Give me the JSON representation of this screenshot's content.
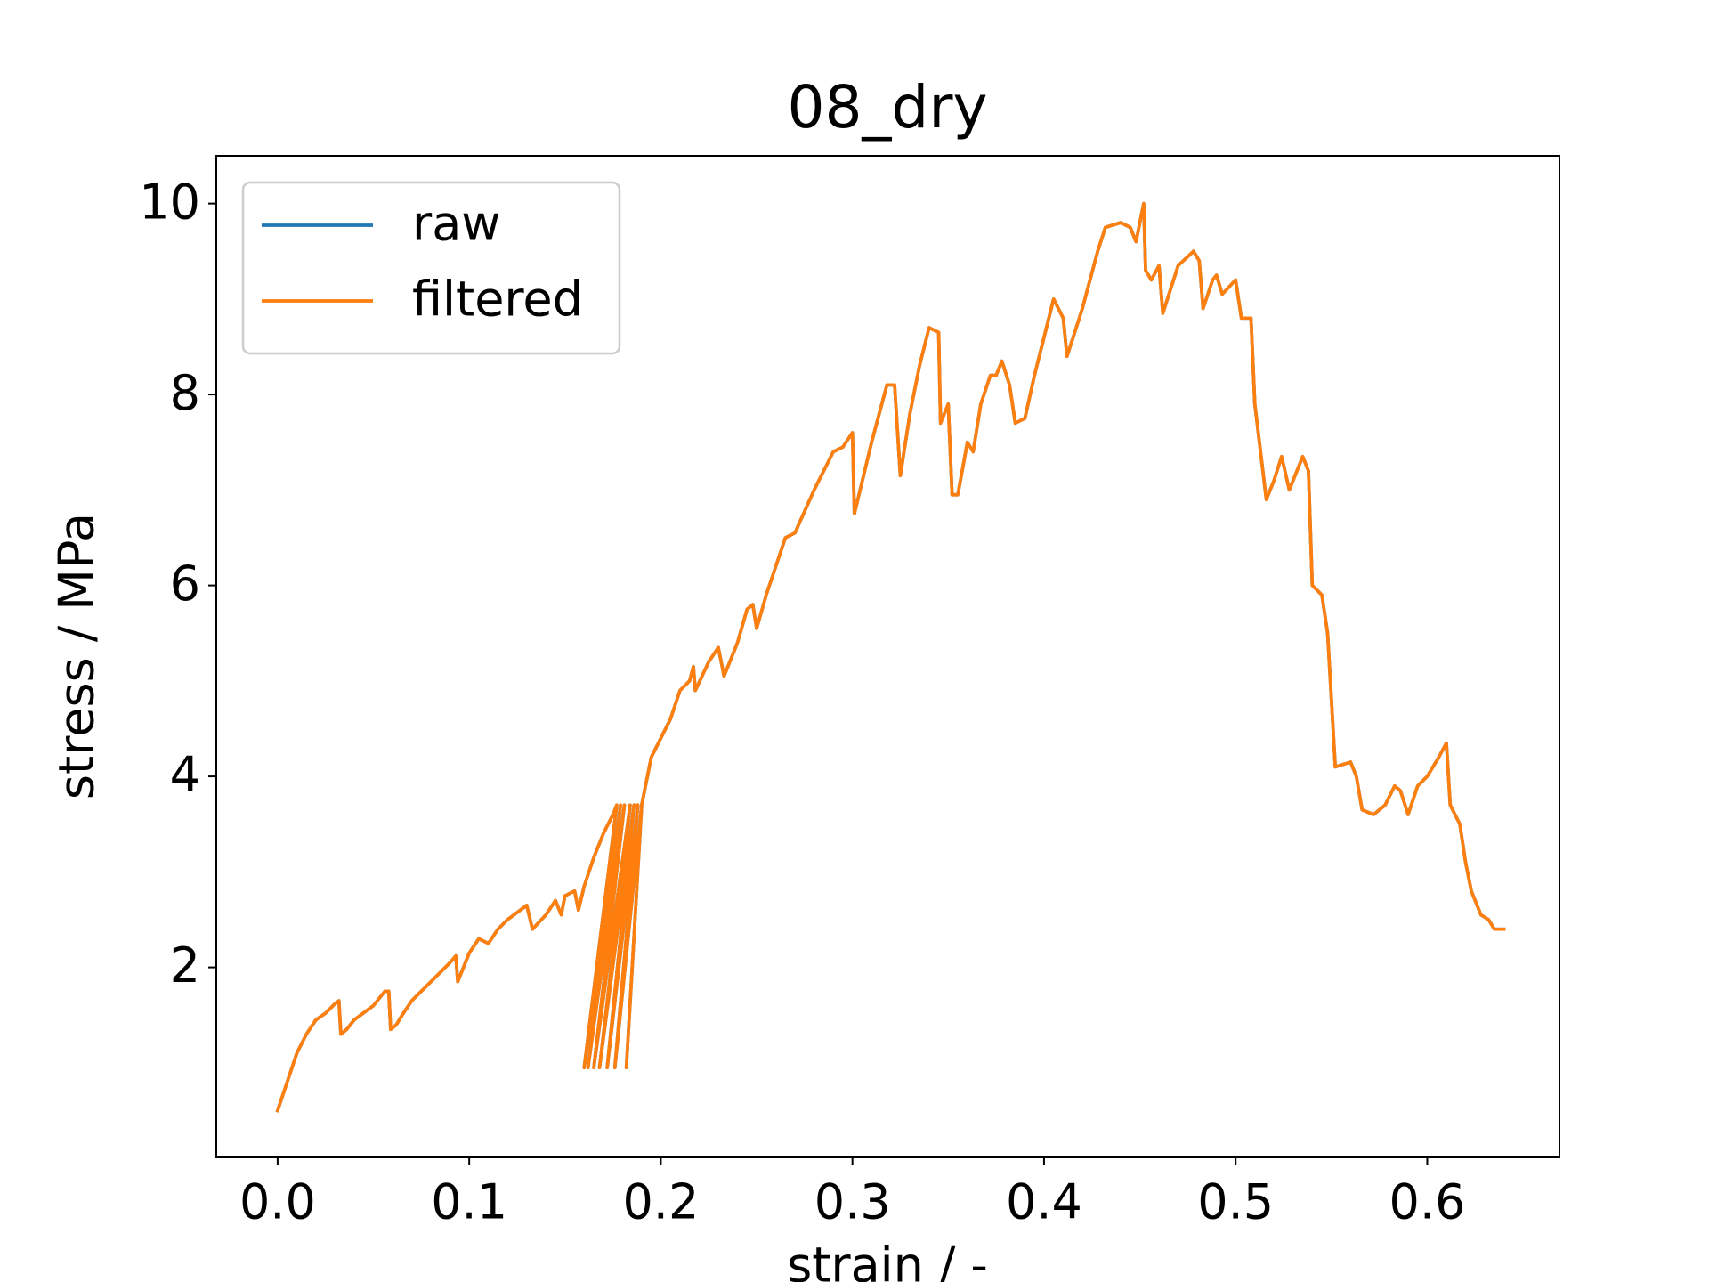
{
  "chart_data": {
    "type": "line",
    "title": "08_dry",
    "x_label": "strain / -",
    "y_label": "stress / MPa",
    "x": [
      0,
      0.005,
      0.01,
      0.015,
      0.02,
      0.025,
      0.03,
      0.032,
      0.033,
      0.036,
      0.04,
      0.05,
      0.056,
      0.058,
      0.059,
      0.062,
      0.065,
      0.07,
      0.08,
      0.09,
      0.093,
      0.094,
      0.1,
      0.105,
      0.11,
      0.115,
      0.12,
      0.13,
      0.133,
      0.14,
      0.145,
      0.148,
      0.15,
      0.155,
      0.157,
      0.16,
      0.165,
      0.17,
      0.175,
      0.177,
      0.16,
      0.179,
      0.162,
      0.181,
      0.165,
      0.184,
      0.168,
      0.186,
      0.172,
      0.188,
      0.176,
      0.19,
      0.182,
      0.19,
      0.195,
      0.2,
      0.205,
      0.21,
      0.215,
      0.217,
      0.218,
      0.225,
      0.23,
      0.233,
      0.24,
      0.245,
      0.248,
      0.25,
      0.255,
      0.26,
      0.265,
      0.27,
      0.28,
      0.29,
      0.295,
      0.3,
      0.301,
      0.31,
      0.318,
      0.322,
      0.325,
      0.33,
      0.335,
      0.34,
      0.345,
      0.346,
      0.35,
      0.352,
      0.355,
      0.36,
      0.363,
      0.367,
      0.372,
      0.375,
      0.378,
      0.382,
      0.385,
      0.39,
      0.395,
      0.4,
      0.405,
      0.41,
      0.412,
      0.42,
      0.428,
      0.432,
      0.44,
      0.445,
      0.448,
      0.452,
      0.453,
      0.456,
      0.46,
      0.462,
      0.47,
      0.478,
      0.481,
      0.483,
      0.488,
      0.49,
      0.493,
      0.5,
      0.503,
      0.508,
      0.51,
      0.513,
      0.516,
      0.52,
      0.524,
      0.528,
      0.532,
      0.535,
      0.538,
      0.54,
      0.545,
      0.548,
      0.55,
      0.552,
      0.56,
      0.563,
      0.566,
      0.572,
      0.578,
      0.583,
      0.586,
      0.59,
      0.595,
      0.6,
      0.606,
      0.61,
      0.612,
      0.617,
      0.62,
      0.623,
      0.628,
      0.632,
      0.635,
      0.64
    ],
    "series": [
      {
        "name": "raw",
        "color": "#1f77b4",
        "values": [
          0.5,
          0.8,
          1.1,
          1.3,
          1.45,
          1.52,
          1.62,
          1.65,
          1.3,
          1.35,
          1.45,
          1.6,
          1.75,
          1.75,
          1.35,
          1.4,
          1.5,
          1.65,
          1.85,
          2.05,
          2.12,
          1.85,
          2.15,
          2.3,
          2.25,
          2.4,
          2.5,
          2.65,
          2.4,
          2.55,
          2.7,
          2.55,
          2.75,
          2.8,
          2.6,
          2.85,
          3.15,
          3.4,
          3.6,
          3.7,
          0.95,
          3.7,
          0.95,
          3.7,
          0.95,
          3.7,
          0.95,
          3.7,
          0.95,
          3.7,
          0.95,
          3.7,
          0.95,
          3.7,
          4.2,
          4.4,
          4.6,
          4.9,
          5.0,
          5.15,
          4.9,
          5.2,
          5.35,
          5.05,
          5.4,
          5.75,
          5.8,
          5.55,
          5.9,
          6.2,
          6.5,
          6.55,
          7.0,
          7.4,
          7.45,
          7.6,
          6.75,
          7.5,
          8.1,
          8.1,
          7.15,
          7.8,
          8.3,
          8.7,
          8.65,
          7.7,
          7.9,
          6.95,
          6.95,
          7.5,
          7.4,
          7.9,
          8.2,
          8.2,
          8.35,
          8.1,
          7.7,
          7.75,
          8.2,
          8.6,
          9.0,
          8.8,
          8.4,
          8.9,
          9.5,
          9.75,
          9.8,
          9.75,
          9.6,
          10.0,
          9.3,
          9.2,
          9.35,
          8.85,
          9.35,
          9.5,
          9.4,
          8.9,
          9.2,
          9.25,
          9.05,
          9.2,
          8.8,
          8.8,
          7.9,
          7.4,
          6.9,
          7.1,
          7.35,
          7.0,
          7.2,
          7.35,
          7.2,
          6.0,
          5.9,
          5.5,
          4.8,
          4.1,
          4.15,
          4.0,
          3.65,
          3.6,
          3.7,
          3.9,
          3.85,
          3.6,
          3.9,
          4.0,
          4.2,
          4.35,
          3.7,
          3.5,
          3.1,
          2.8,
          2.55,
          2.5,
          2.4,
          2.4
        ]
      },
      {
        "name": "filtered",
        "color": "#ff7f0e",
        "values": [
          0.5,
          0.8,
          1.1,
          1.3,
          1.45,
          1.52,
          1.62,
          1.65,
          1.3,
          1.35,
          1.45,
          1.6,
          1.75,
          1.75,
          1.35,
          1.4,
          1.5,
          1.65,
          1.85,
          2.05,
          2.12,
          1.85,
          2.15,
          2.3,
          2.25,
          2.4,
          2.5,
          2.65,
          2.4,
          2.55,
          2.7,
          2.55,
          2.75,
          2.8,
          2.6,
          2.85,
          3.15,
          3.4,
          3.6,
          3.7,
          0.95,
          3.7,
          0.95,
          3.7,
          0.95,
          3.7,
          0.95,
          3.7,
          0.95,
          3.7,
          0.95,
          3.7,
          0.95,
          3.7,
          4.2,
          4.4,
          4.6,
          4.9,
          5.0,
          5.15,
          4.9,
          5.2,
          5.35,
          5.05,
          5.4,
          5.75,
          5.8,
          5.55,
          5.9,
          6.2,
          6.5,
          6.55,
          7.0,
          7.4,
          7.45,
          7.6,
          6.75,
          7.5,
          8.1,
          8.1,
          7.15,
          7.8,
          8.3,
          8.7,
          8.65,
          7.7,
          7.9,
          6.95,
          6.95,
          7.5,
          7.4,
          7.9,
          8.2,
          8.2,
          8.35,
          8.1,
          7.7,
          7.75,
          8.2,
          8.6,
          9.0,
          8.8,
          8.4,
          8.9,
          9.5,
          9.75,
          9.8,
          9.75,
          9.6,
          10.0,
          9.3,
          9.2,
          9.35,
          8.85,
          9.35,
          9.5,
          9.4,
          8.9,
          9.2,
          9.25,
          9.05,
          9.2,
          8.8,
          8.8,
          7.9,
          7.4,
          6.9,
          7.1,
          7.35,
          7.0,
          7.2,
          7.35,
          7.2,
          6.0,
          5.9,
          5.5,
          4.8,
          4.1,
          4.15,
          4.0,
          3.65,
          3.6,
          3.7,
          3.9,
          3.85,
          3.6,
          3.9,
          4.0,
          4.2,
          4.35,
          3.7,
          3.5,
          3.1,
          2.8,
          2.55,
          2.5,
          2.4,
          2.4
        ]
      }
    ],
    "xlim": [
      -0.032,
      0.669
    ],
    "ylim": [
      0.01,
      10.5
    ],
    "xticks": [
      {
        "value": 0,
        "label": "0.0"
      },
      0.1,
      0.2,
      0.3,
      0.4,
      0.5,
      0.6
    ],
    "yticks": [
      2,
      4,
      6,
      8,
      10
    ],
    "legend": "upper left"
  }
}
